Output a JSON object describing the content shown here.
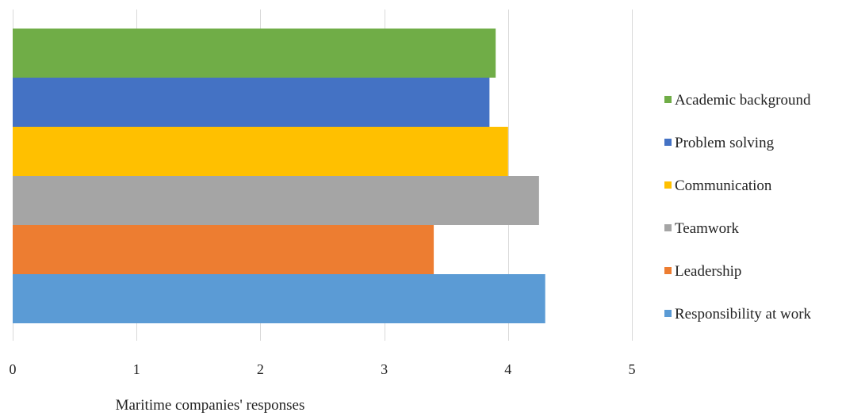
{
  "chart_data": {
    "type": "bar",
    "orientation": "horizontal",
    "xlabel": "Maritime companies' responses",
    "ylabel": "",
    "xlim": [
      0,
      5
    ],
    "x_ticks": [
      0,
      1,
      2,
      3,
      4,
      5
    ],
    "grid": "vertical",
    "legend_position": "right",
    "series": [
      {
        "name": "Academic background",
        "value": 3.9,
        "color": "#70ad47"
      },
      {
        "name": "Problem solving",
        "value": 3.85,
        "color": "#4472c4"
      },
      {
        "name": "Communication",
        "value": 4.0,
        "color": "#ffc000"
      },
      {
        "name": "Teamwork",
        "value": 4.25,
        "color": "#a5a5a5"
      },
      {
        "name": "Leadership",
        "value": 3.4,
        "color": "#ed7d31"
      },
      {
        "name": "Responsibility at work",
        "value": 4.3,
        "color": "#5b9bd5"
      }
    ]
  }
}
